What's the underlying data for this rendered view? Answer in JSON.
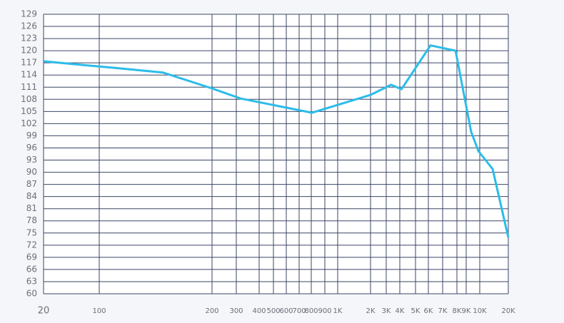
{
  "chart_data": {
    "type": "line",
    "x": [
      20,
      47,
      109,
      148,
      200,
      317,
      805,
      2000,
      3330,
      4100,
      6140,
      7900,
      9350,
      9900,
      13660,
      20000
    ],
    "series": [
      {
        "color": "#2bbce9",
        "values": [
          117.4,
          116.7,
          115.8,
          114.6,
          110.7,
          108.2,
          104.7,
          109.1,
          111.6,
          110.5,
          121.3,
          120,
          100,
          95.2,
          90.8,
          73.9
        ]
      }
    ],
    "xlim": [
      20,
      20000
    ],
    "xticks": [
      20,
      100,
      200,
      300,
      400,
      500,
      600,
      700,
      800,
      900,
      {
        "value": 1000,
        "label": "1K"
      },
      {
        "value": 2000,
        "label": "2K"
      },
      {
        "value": 3000,
        "label": "3K"
      },
      {
        "value": 4000,
        "label": "4K"
      },
      {
        "value": 5000,
        "label": "5K"
      },
      {
        "value": 6000,
        "label": "6K"
      },
      {
        "value": 7000,
        "label": "7K"
      },
      {
        "value": 8000,
        "label": "8K"
      },
      {
        "value": 9000,
        "label": "9K"
      },
      {
        "value": 10000,
        "label": "10K"
      },
      {
        "value": 20000,
        "label": "20K"
      }
    ],
    "ylim": [
      60,
      129
    ],
    "yticks": [
      60,
      63,
      66,
      69,
      72,
      75,
      78,
      81,
      84,
      87,
      90,
      93,
      96,
      99,
      102,
      105,
      108,
      111,
      114,
      117,
      120,
      123,
      126,
      129
    ],
    "grid": true
  }
}
